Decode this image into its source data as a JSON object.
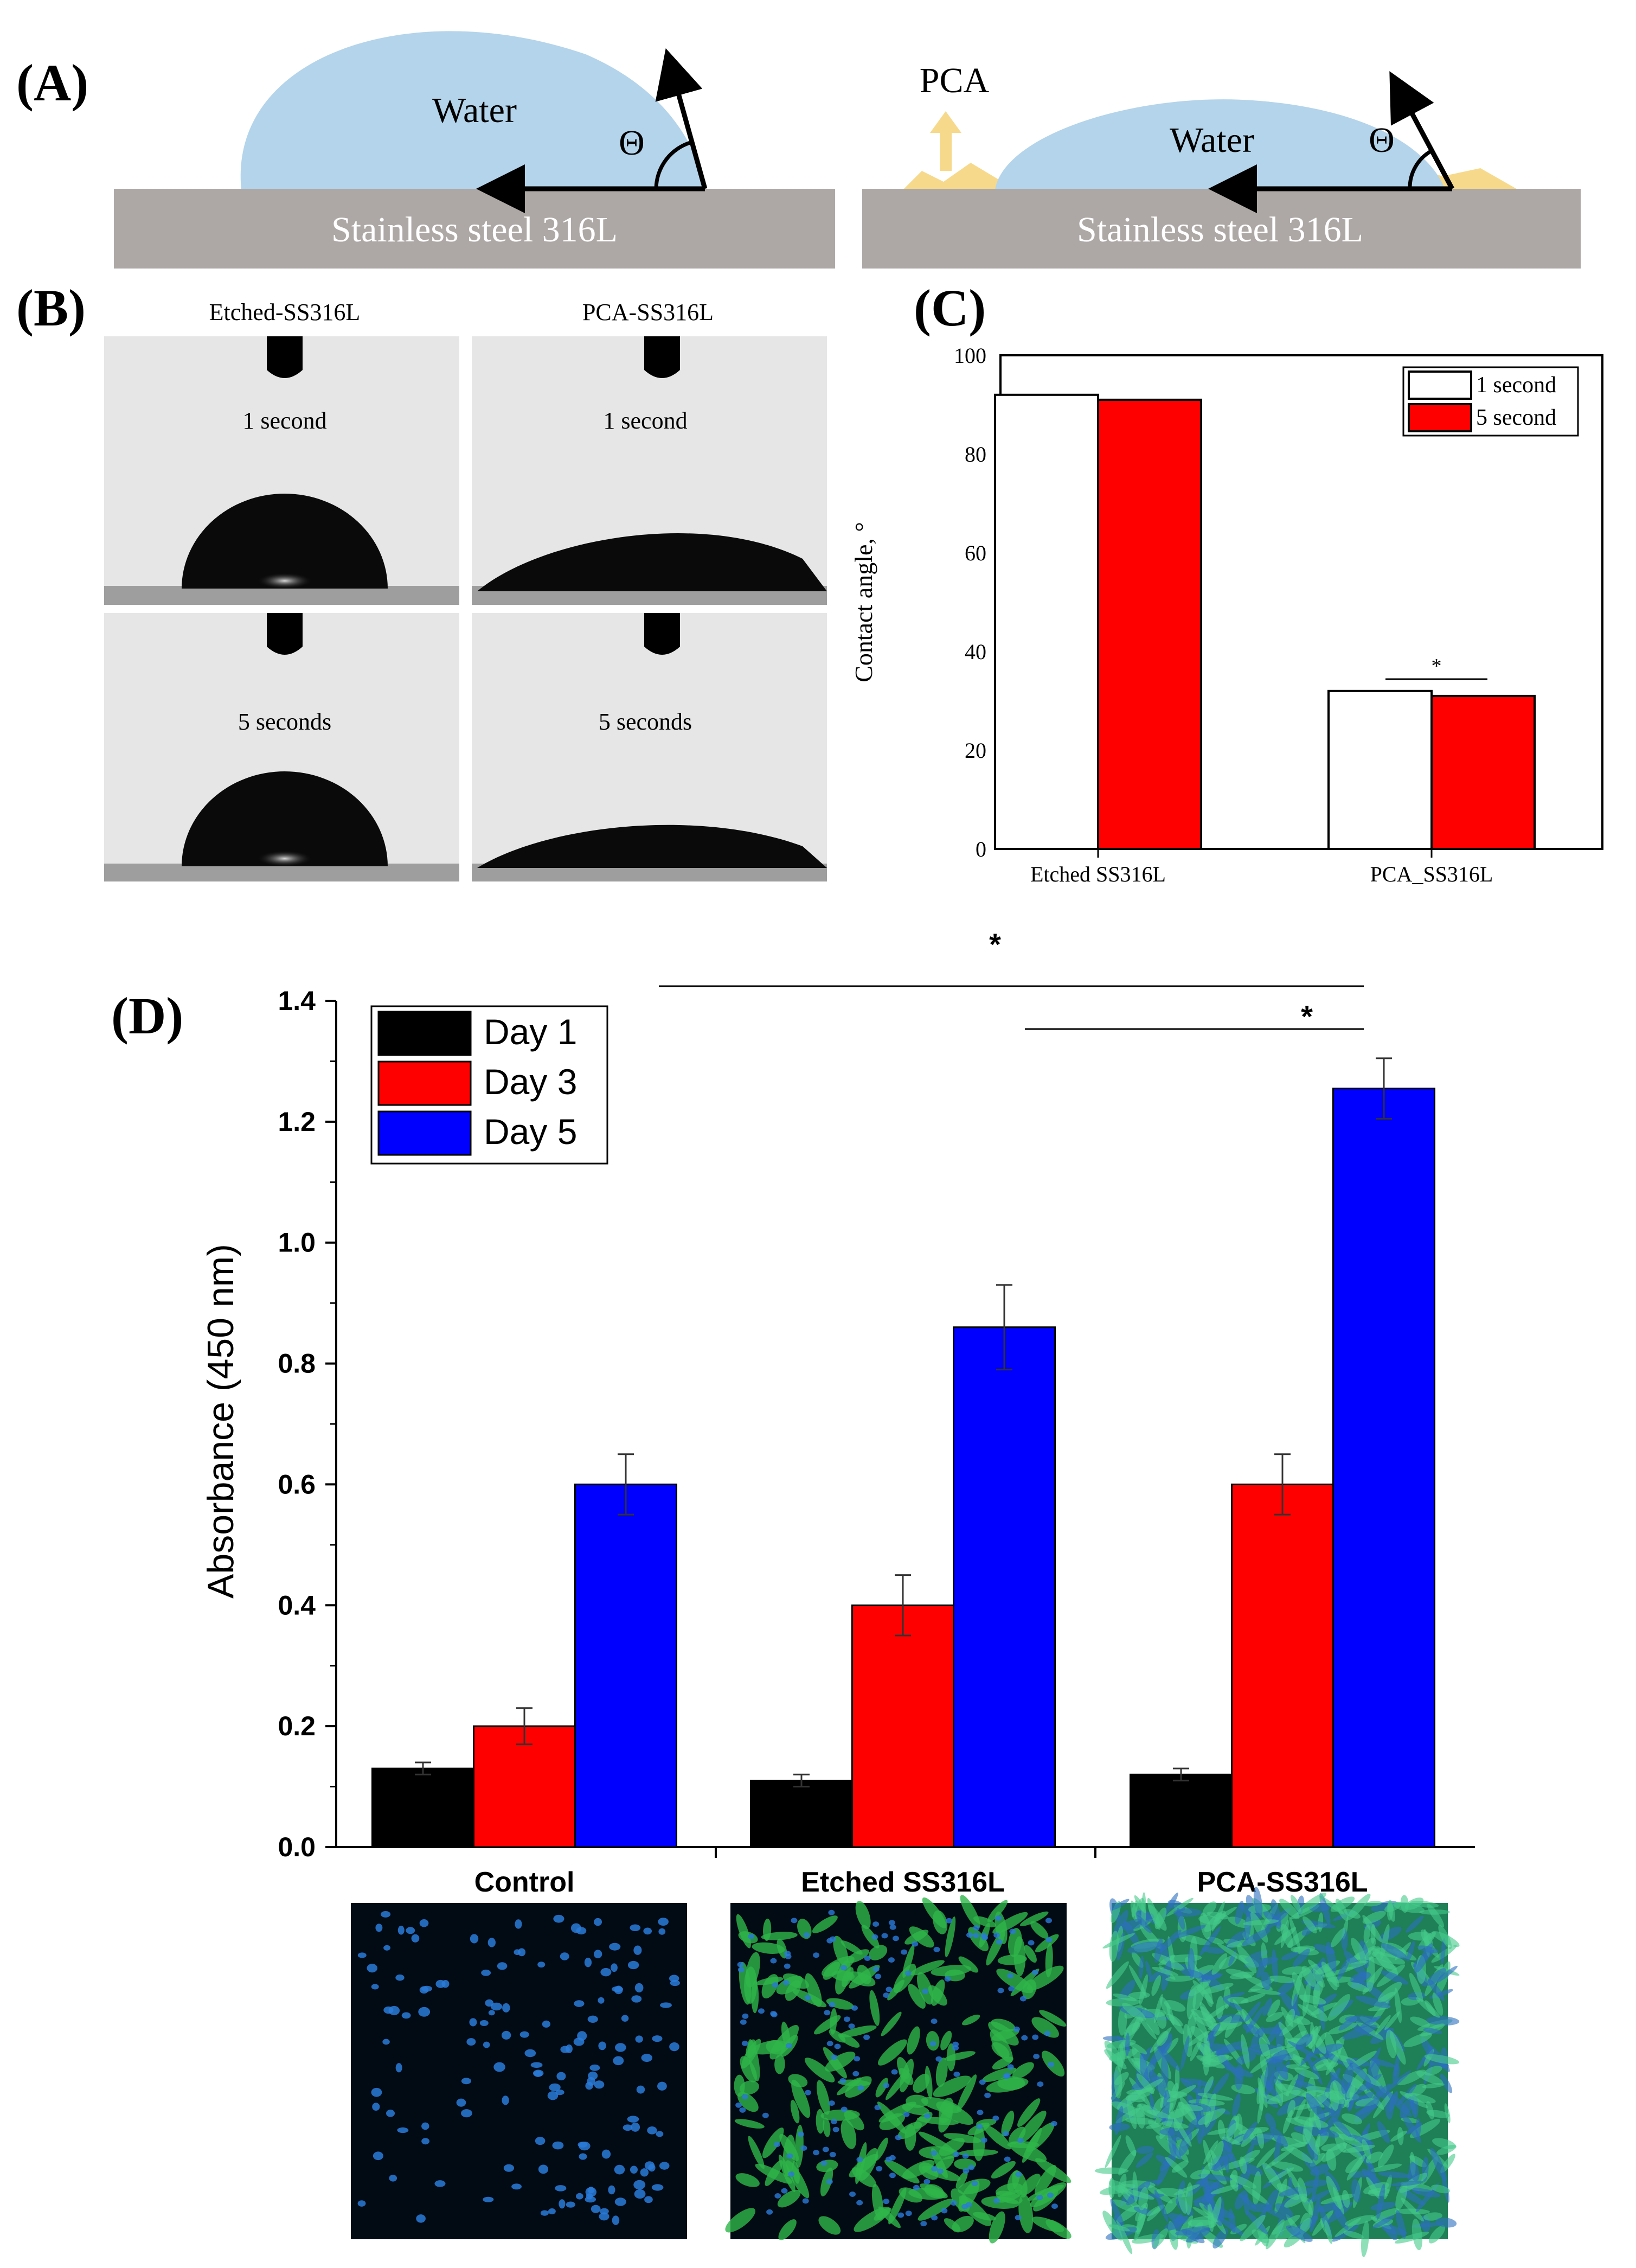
{
  "panels": {
    "a": {
      "label": "(A)",
      "left": {
        "liquid": "Water",
        "angle_symbol": "Θ",
        "substrate": "Stainless steel 316L"
      },
      "right": {
        "coating": "PCA",
        "liquid": "Water",
        "angle_symbol": "Θ",
        "substrate": "Stainless steel 316L"
      }
    },
    "b": {
      "label": "(B)",
      "columns": [
        "Etched-SS316L",
        "PCA-SS316L"
      ],
      "rows": [
        "1 second",
        "5 seconds"
      ]
    },
    "c": {
      "label": "(C)"
    },
    "d": {
      "label": "(D)",
      "image_labels": [
        "Control",
        "Etched SS316L",
        "PCA-SS316L"
      ]
    }
  },
  "colors": {
    "water": "#b3d4ea",
    "pca": "#f7d98b",
    "steel": "#ada8a5",
    "red": "#ff0000",
    "blue": "#0000ff",
    "black": "#000000",
    "white": "#ffffff",
    "photo_bg": "#e6e6e6",
    "micro_bg": "#020a14",
    "cell_green": "#2fb54a",
    "nucleus_blue": "#2a7bd8"
  },
  "chart_data": [
    {
      "id": "C",
      "type": "bar",
      "title": "",
      "xlabel": "",
      "ylabel": "Contact angle, °",
      "categories": [
        "Etched SS316L",
        "PCA_SS316L"
      ],
      "series": [
        {
          "name": "1 second",
          "color": "#ffffff",
          "values": [
            92,
            32
          ]
        },
        {
          "name": "5 second",
          "color": "#ff0000",
          "values": [
            91,
            31
          ]
        }
      ],
      "ylim": [
        0,
        100
      ],
      "yticks": [
        0,
        20,
        40,
        60,
        80,
        100
      ],
      "legend": "top-right",
      "annotations": [
        {
          "text": "*",
          "between": "PCA_SS316L 1 second vs 5 second"
        }
      ]
    },
    {
      "id": "D",
      "type": "bar",
      "title": "",
      "xlabel": "",
      "ylabel": "Absorbance (450 nm)",
      "categories": [
        "Control",
        "Etched SS316L",
        "PCA-SS316L"
      ],
      "series": [
        {
          "name": "Day 1",
          "color": "#000000",
          "values": [
            0.13,
            0.11,
            0.12
          ],
          "errors": [
            0.01,
            0.01,
            0.01
          ]
        },
        {
          "name": "Day 3",
          "color": "#ff0000",
          "values": [
            0.2,
            0.4,
            0.6
          ],
          "errors": [
            0.03,
            0.05,
            0.05
          ]
        },
        {
          "name": "Day 5",
          "color": "#0000ff",
          "values": [
            0.6,
            0.86,
            1.255
          ],
          "errors": [
            0.05,
            0.07,
            0.05
          ]
        }
      ],
      "ylim": [
        0,
        1.4
      ],
      "yticks": [
        "0.0",
        "0.2",
        "0.4",
        "0.6",
        "0.8",
        "1.0",
        "1.2",
        "1.4"
      ],
      "legend": "top-left",
      "annotations": [
        {
          "text": "*",
          "between": "Control Day 5 vs PCA-SS316L Day 5"
        },
        {
          "text": "*",
          "between": "Etched SS316L Day 5 vs PCA-SS316L Day 5"
        }
      ]
    }
  ]
}
